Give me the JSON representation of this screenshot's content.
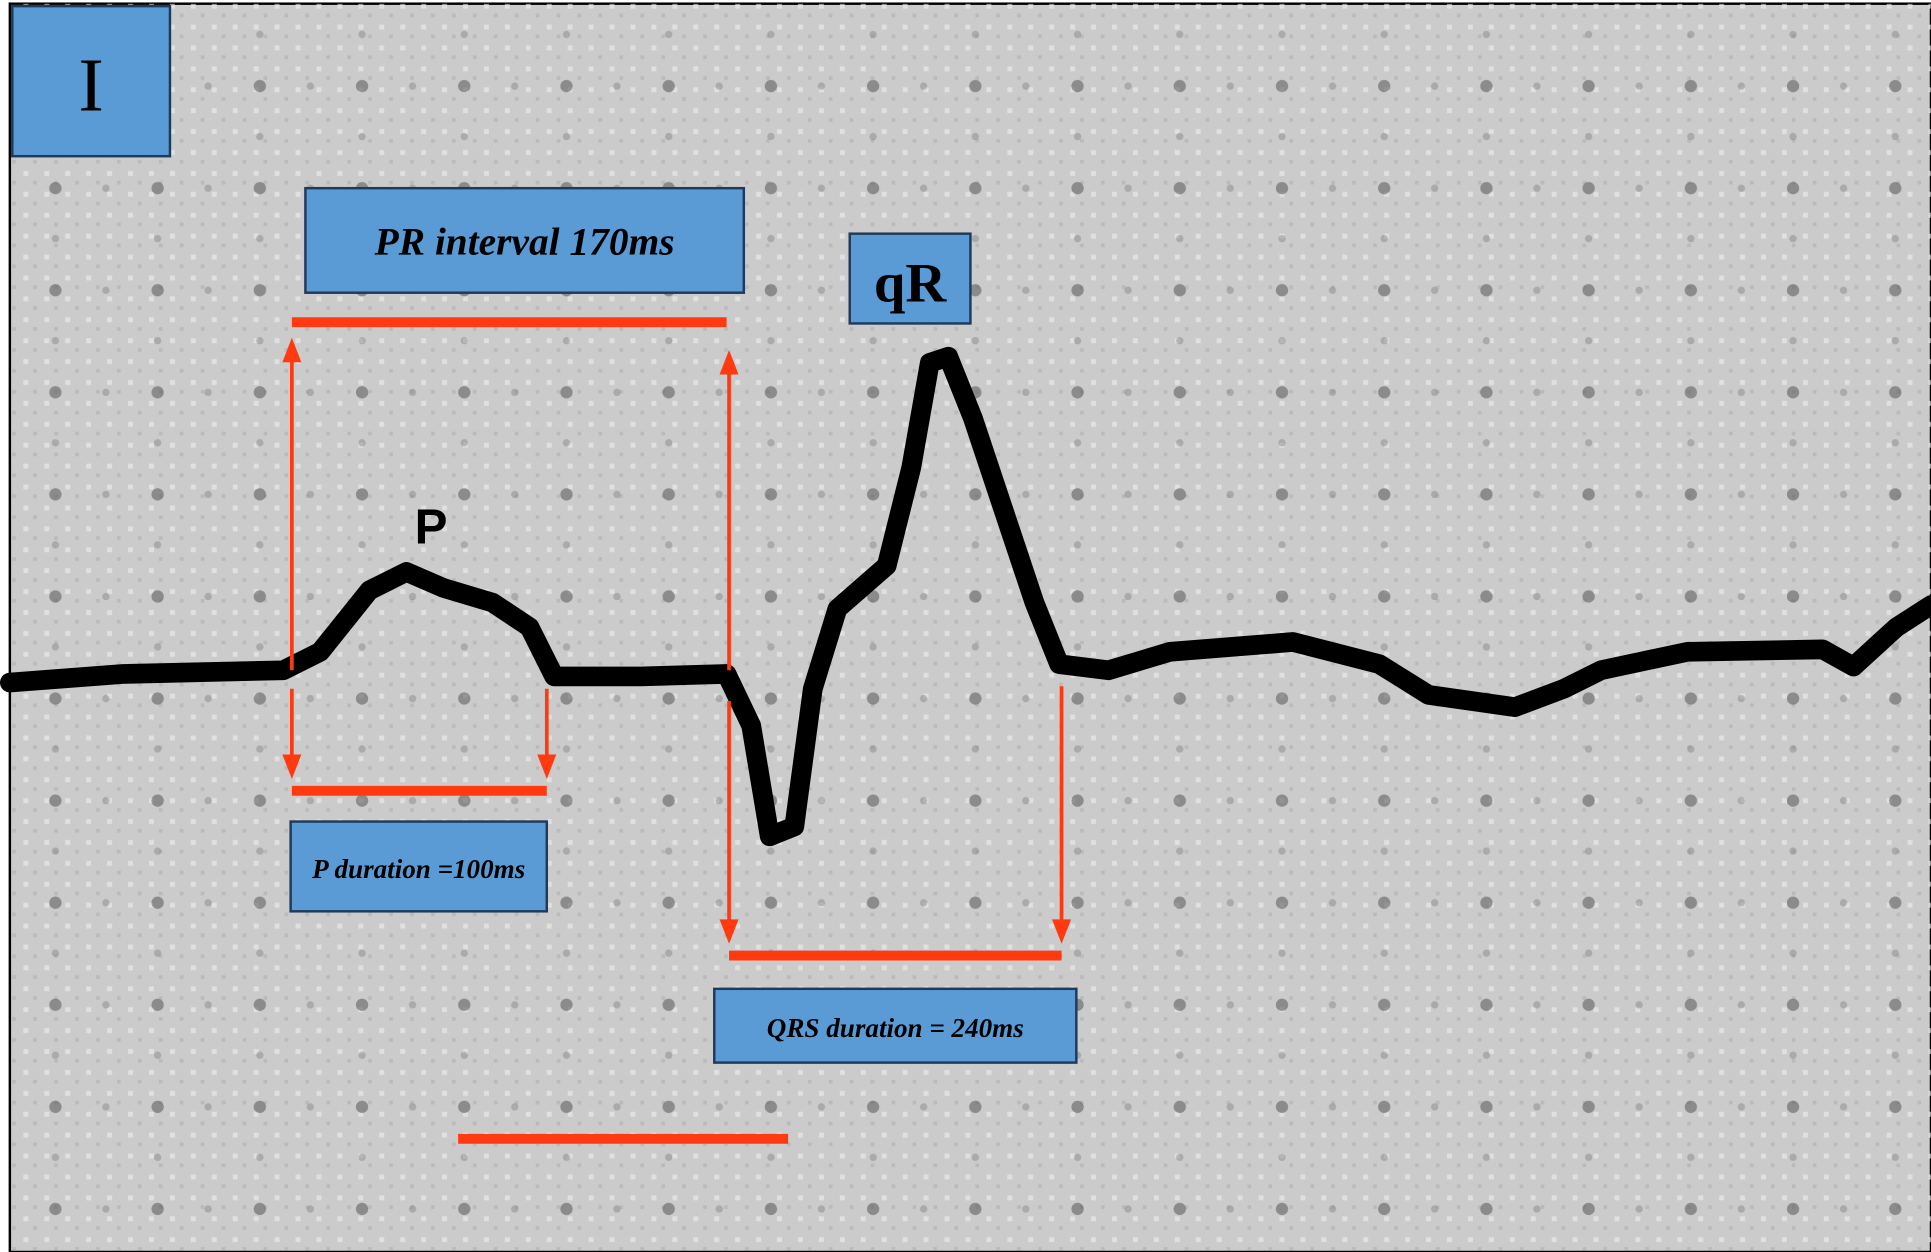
{
  "lead": "I",
  "annotations": {
    "pr_interval": "PR interval 170ms",
    "qrs_morphology": "qR",
    "p_wave": "P",
    "p_duration": "P duration =100ms",
    "qrs_duration": "QRS duration = 240ms"
  }
}
